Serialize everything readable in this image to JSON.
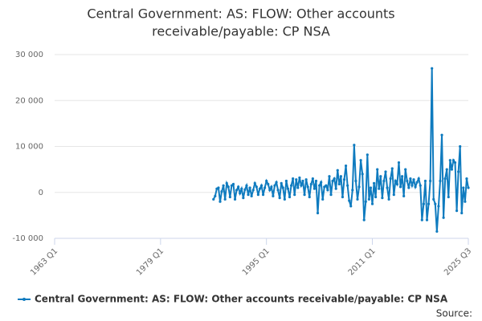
{
  "chart_data": {
    "type": "line",
    "title": "Central Government: AS: FLOW: Other accounts receivable/payable: CP NSA",
    "source": "Source:",
    "categories": [
      "1963 Q1",
      null,
      null,
      null,
      null,
      null,
      null,
      null,
      null,
      null,
      null,
      null,
      null,
      null,
      null,
      null,
      null,
      null,
      null,
      null,
      null,
      null,
      null,
      null,
      null,
      null,
      null,
      null,
      null,
      null,
      null,
      null,
      null,
      null,
      null,
      null,
      null,
      null,
      null,
      null,
      null,
      null,
      null,
      null,
      null,
      null,
      null,
      null,
      null,
      null,
      null,
      null,
      null,
      null,
      null,
      null,
      null,
      null,
      null,
      null,
      null,
      null,
      null,
      null,
      "1979 Q1",
      null,
      null,
      null,
      null,
      null,
      null,
      null,
      null,
      null,
      null,
      null,
      null,
      null,
      null,
      null,
      null,
      null,
      null,
      null,
      null,
      null,
      null,
      null,
      null,
      null,
      null,
      null,
      null,
      null,
      null,
      null,
      null,
      null,
      null,
      null,
      null,
      null,
      null,
      null,
      null,
      null,
      null,
      null,
      null,
      null,
      null,
      null,
      null,
      null,
      null,
      null,
      null,
      null,
      null,
      null,
      null,
      null,
      null,
      null,
      null,
      null,
      null,
      null,
      "1995 Q1",
      null,
      null,
      null,
      null,
      null,
      null,
      null,
      null,
      null,
      null,
      null,
      null,
      null,
      null,
      null,
      null,
      null,
      null,
      null,
      null,
      null,
      null,
      null,
      null,
      null,
      null,
      null,
      null,
      null,
      null,
      null,
      null,
      null,
      null,
      null,
      null,
      null,
      null,
      null,
      null,
      null,
      null,
      null,
      null,
      null,
      null,
      null,
      null,
      null,
      null,
      null,
      null,
      null,
      null,
      null,
      null,
      null,
      null,
      null,
      null,
      null,
      null,
      null,
      "2011 Q1",
      null,
      null,
      null,
      null,
      null,
      null,
      null,
      null,
      null,
      null,
      null,
      null,
      null,
      null,
      null,
      null,
      null,
      null,
      null,
      null,
      null,
      null,
      null,
      null,
      null,
      null,
      null,
      null,
      null,
      null,
      null,
      null,
      null,
      null,
      null,
      null,
      null,
      null,
      null,
      null,
      null,
      null,
      null,
      null,
      null,
      null,
      null,
      null,
      null,
      null,
      null,
      null,
      null,
      null,
      null,
      null,
      null,
      "2025 Q3"
    ],
    "series": [
      {
        "name": "Central Government: AS: FLOW: Other accounts receivable/payable: CP NSA",
        "color": "#0f7bbf",
        "values": [
          null,
          null,
          null,
          null,
          null,
          null,
          null,
          null,
          null,
          null,
          null,
          null,
          null,
          null,
          null,
          null,
          null,
          null,
          null,
          null,
          null,
          null,
          null,
          null,
          null,
          null,
          null,
          null,
          null,
          null,
          null,
          null,
          null,
          null,
          null,
          null,
          null,
          null,
          null,
          null,
          null,
          null,
          null,
          null,
          null,
          null,
          null,
          null,
          null,
          null,
          null,
          null,
          null,
          null,
          null,
          null,
          null,
          null,
          null,
          null,
          null,
          null,
          null,
          null,
          null,
          null,
          null,
          null,
          null,
          null,
          null,
          null,
          null,
          null,
          null,
          null,
          null,
          null,
          null,
          null,
          null,
          null,
          null,
          null,
          null,
          null,
          null,
          null,
          null,
          null,
          null,
          null,
          null,
          null,
          null,
          null,
          -1500,
          -800,
          800,
          1000,
          -2000,
          200,
          1500,
          -1500,
          2000,
          1200,
          -1000,
          1500,
          1800,
          -1500,
          500,
          1200,
          -200,
          800,
          -1200,
          600,
          1500,
          -500,
          1000,
          -800,
          500,
          2000,
          1200,
          -500,
          800,
          1500,
          -500,
          1000,
          2500,
          1800,
          500,
          1200,
          -800,
          1500,
          2200,
          500,
          -1200,
          2000,
          1000,
          -1500,
          2500,
          800,
          -1000,
          1500,
          3000,
          -500,
          2800,
          1000,
          3200,
          1500,
          2500,
          -500,
          2800,
          1200,
          -1000,
          1800,
          3000,
          800,
          2500,
          -4500,
          1500,
          2200,
          -1500,
          1200,
          1500,
          500,
          3500,
          -500,
          2500,
          3000,
          800,
          4800,
          1800,
          3500,
          -1000,
          2800,
          5800,
          1500,
          -1800,
          -3000,
          500,
          10300,
          2500,
          -1500,
          1200,
          7000,
          4000,
          -6000,
          -2000,
          8200,
          -1500,
          1000,
          -2500,
          2000,
          -1000,
          5000,
          800,
          3500,
          -1200,
          2500,
          4500,
          1000,
          -1500,
          3000,
          5200,
          -500,
          2500,
          1800,
          6500,
          1200,
          3500,
          -800,
          5000,
          2500,
          1000,
          3000,
          1500,
          2800,
          1200,
          2200,
          3000,
          1500,
          -6000,
          -2500,
          2500,
          -6000,
          -2500,
          2500,
          27000,
          -1500,
          -2500,
          -8500,
          -3000,
          2500,
          12500,
          -5500,
          3000,
          5000,
          -1000,
          7000,
          5000,
          7000,
          6500,
          -4000,
          4500,
          10000,
          -4500,
          1000,
          -2000,
          3000,
          1000
        ]
      }
    ],
    "ylim": [
      -10000,
      30000
    ],
    "yticks": [
      {
        "value": -10000,
        "label": "-10 000"
      },
      0,
      {
        "value": 10000,
        "label": "10 000"
      },
      {
        "value": 20000,
        "label": "20 000"
      },
      {
        "value": 30000,
        "label": "30 000"
      }
    ],
    "grid": true
  }
}
